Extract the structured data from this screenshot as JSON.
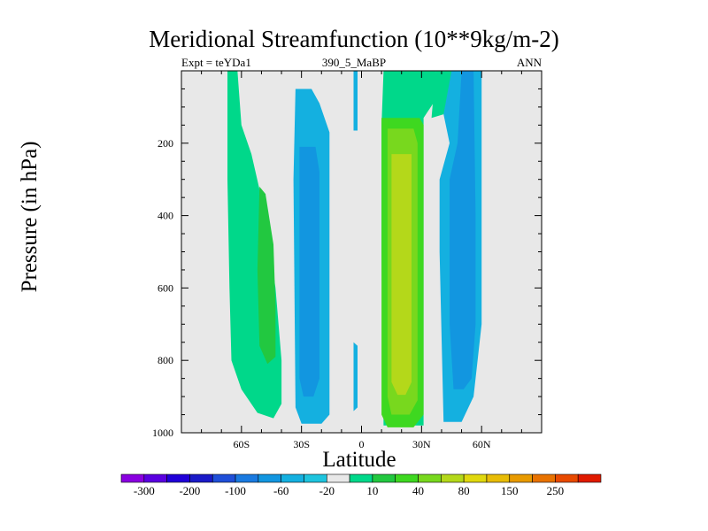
{
  "chart_data": {
    "type": "contour",
    "title": "Meridional Streamfunction (10**9kg/m-2)",
    "subtitle_left": "Expt = teYDa1",
    "subtitle_center": "390_5_MaBP",
    "subtitle_right": "ANN",
    "xlabel": "Latitude",
    "ylabel": "Pressure (in hPa)",
    "xlim": [
      -90,
      90
    ],
    "ylim": [
      1000,
      0
    ],
    "x_ticks": [
      {
        "value": -60,
        "label": "60S"
      },
      {
        "value": -30,
        "label": "30S"
      },
      {
        "value": 0,
        "label": "0"
      },
      {
        "value": 30,
        "label": "30N"
      },
      {
        "value": 60,
        "label": "60N"
      }
    ],
    "y_ticks": [
      {
        "value": 200,
        "label": "200"
      },
      {
        "value": 400,
        "label": "400"
      },
      {
        "value": 600,
        "label": "600"
      },
      {
        "value": 800,
        "label": "800"
      },
      {
        "value": 1000,
        "label": "1000"
      }
    ],
    "colorbar_labels": [
      "-300",
      "-200",
      "-100",
      "-60",
      "-20",
      "10",
      "40",
      "80",
      "150",
      "250"
    ],
    "colorbar_colors": [
      "#8a00e0",
      "#5a00e0",
      "#2000d8",
      "#1a1ac8",
      "#1f4fd8",
      "#1a7ae0",
      "#1296e0",
      "#14b0e0",
      "#1ec4de",
      "#e8e8e8",
      "#00d88a",
      "#22c840",
      "#3ed820",
      "#78d81e",
      "#b4d81a",
      "#e0d80e",
      "#e8bc06",
      "#e89a00",
      "#e87200",
      "#e84a00",
      "#e01a00"
    ],
    "background_color": "#e8e8e8",
    "regions": [
      {
        "name": "sh-outer-cell",
        "fill": "#00d88a",
        "points": [
          [
            -67,
            0
          ],
          [
            -62,
            0
          ],
          [
            -60,
            150
          ],
          [
            -55,
            230
          ],
          [
            -48,
            400
          ],
          [
            -43,
            600
          ],
          [
            -40,
            800
          ],
          [
            -40,
            920
          ],
          [
            -44,
            960
          ],
          [
            -52,
            945
          ],
          [
            -60,
            880
          ],
          [
            -65,
            800
          ],
          [
            -66,
            600
          ],
          [
            -67,
            300
          ]
        ]
      },
      {
        "name": "sh-outer-core",
        "fill": "#22c840",
        "points": [
          [
            -51,
            320
          ],
          [
            -48,
            340
          ],
          [
            -44,
            480
          ],
          [
            -43,
            650
          ],
          [
            -43,
            790
          ],
          [
            -47,
            810
          ],
          [
            -51,
            760
          ],
          [
            -52,
            550
          ]
        ]
      },
      {
        "name": "sh-main-cell",
        "fill": "#14b0e0",
        "points": [
          [
            -33,
            50
          ],
          [
            -25,
            50
          ],
          [
            -21,
            90
          ],
          [
            -16,
            170
          ],
          [
            -16,
            950
          ],
          [
            -20,
            975
          ],
          [
            -30,
            975
          ],
          [
            -33,
            930
          ],
          [
            -34,
            300
          ]
        ]
      },
      {
        "name": "sh-main-core",
        "fill": "#1296e0",
        "points": [
          [
            -31,
            210
          ],
          [
            -23,
            210
          ],
          [
            -21,
            280
          ],
          [
            -21,
            850
          ],
          [
            -24,
            900
          ],
          [
            -29,
            900
          ],
          [
            -31,
            850
          ]
        ]
      },
      {
        "name": "eq-blue-strip",
        "fill": "#14b0e0",
        "points": [
          [
            -4,
            0
          ],
          [
            -2,
            0
          ],
          [
            -2,
            165
          ],
          [
            -4,
            165
          ]
        ]
      },
      {
        "name": "eq-blue-low",
        "fill": "#14b0e0",
        "points": [
          [
            -4,
            750
          ],
          [
            -2,
            760
          ],
          [
            -2,
            930
          ],
          [
            -4,
            940
          ]
        ]
      },
      {
        "name": "nh-main-outer",
        "fill": "#00d88a",
        "points": [
          [
            11,
            0
          ],
          [
            37,
            0
          ],
          [
            37,
            80
          ],
          [
            31,
            130
          ],
          [
            31,
            980
          ],
          [
            11,
            980
          ],
          [
            10,
            500
          ],
          [
            10,
            150
          ]
        ]
      },
      {
        "name": "nh-main-green",
        "fill": "#3ed820",
        "points": [
          [
            10,
            130
          ],
          [
            29,
            130
          ],
          [
            31,
            150
          ],
          [
            31,
            950
          ],
          [
            26,
            985
          ],
          [
            13,
            985
          ],
          [
            10,
            950
          ]
        ]
      },
      {
        "name": "nh-main-lime",
        "fill": "#78d81e",
        "points": [
          [
            13,
            160
          ],
          [
            26,
            160
          ],
          [
            28,
            200
          ],
          [
            28,
            910
          ],
          [
            24,
            950
          ],
          [
            15,
            950
          ],
          [
            13,
            900
          ]
        ]
      },
      {
        "name": "nh-main-core",
        "fill": "#b4d81a",
        "points": [
          [
            15,
            230
          ],
          [
            25,
            230
          ],
          [
            25,
            860
          ],
          [
            22,
            895
          ],
          [
            18,
            895
          ],
          [
            15,
            860
          ]
        ]
      },
      {
        "name": "nh-outer-light",
        "fill": "#14b0e0",
        "points": [
          [
            41,
            0
          ],
          [
            60,
            0
          ],
          [
            60,
            700
          ],
          [
            56,
            900
          ],
          [
            50,
            970
          ],
          [
            41,
            970
          ],
          [
            39,
            500
          ],
          [
            39,
            300
          ],
          [
            44,
            200
          ],
          [
            41,
            120
          ]
        ]
      },
      {
        "name": "nh-outer-core",
        "fill": "#1296e0",
        "points": [
          [
            50,
            0
          ],
          [
            56,
            0
          ],
          [
            57,
            400
          ],
          [
            57,
            700
          ],
          [
            55,
            850
          ],
          [
            51,
            880
          ],
          [
            46,
            880
          ],
          [
            44,
            700
          ],
          [
            44,
            300
          ],
          [
            48,
            200
          ]
        ]
      },
      {
        "name": "nh-upper-green",
        "fill": "#00d88a",
        "points": [
          [
            37,
            0
          ],
          [
            45,
            0
          ],
          [
            41,
            120
          ],
          [
            35,
            130
          ]
        ]
      }
    ]
  }
}
